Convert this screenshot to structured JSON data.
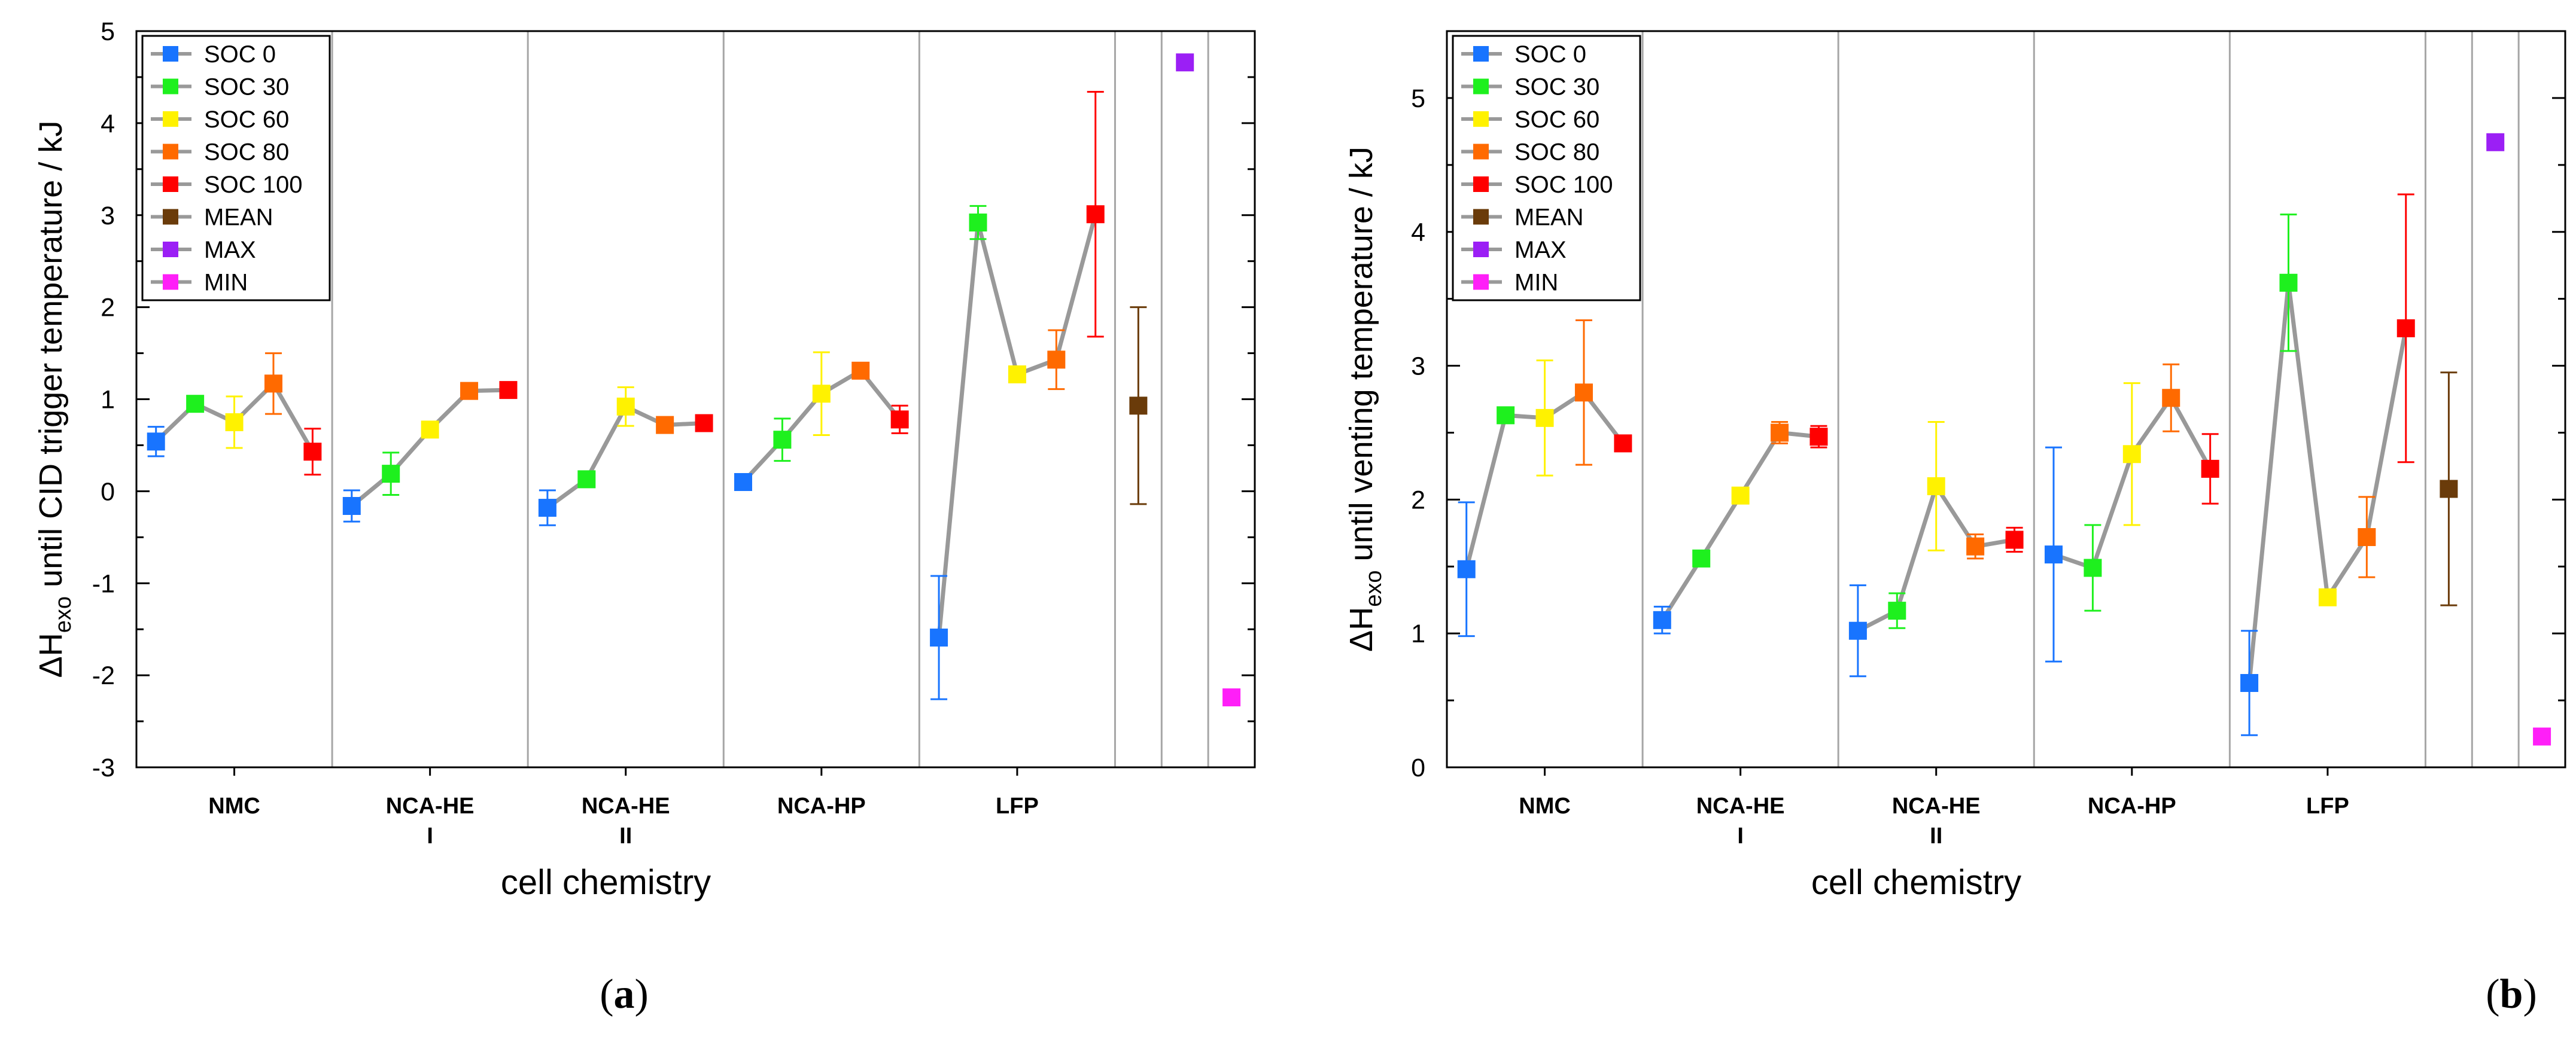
{
  "colors": {
    "soc0": "#1874FF",
    "soc30": "#1EF01E",
    "soc60": "#FFF200",
    "soc80": "#FF6A00",
    "soc100": "#FF0000",
    "mean": "#6A3B0A",
    "max": "#9B1FF5",
    "min": "#FF1FF8",
    "connector": "#999999",
    "divider": "#A6A6A6"
  },
  "chart_data": [
    {
      "type": "scatter",
      "panel_label": "(a)",
      "ylabel_parts": [
        "ΔH",
        "exo",
        " until CID trigger temperature / kJ"
      ],
      "xlabel": "cell chemistry",
      "ylim": [
        -3,
        5
      ],
      "yticks": [
        -3,
        -2,
        -1,
        0,
        1,
        2,
        3,
        4,
        5
      ],
      "ytick_labels": [
        "-3",
        "-2",
        "-1",
        "0",
        "1",
        "2",
        "3",
        "4",
        "5"
      ],
      "groups": [
        {
          "label1": "NMC",
          "label2": "",
          "points": [
            {
              "series": "SOC 0",
              "y": 0.54,
              "err": 0.16
            },
            {
              "series": "SOC 30",
              "y": 0.95,
              "err": 0.0
            },
            {
              "series": "SOC 60",
              "y": 0.75,
              "err": 0.28
            },
            {
              "series": "SOC 80",
              "y": 1.17,
              "err": 0.33
            },
            {
              "series": "SOC 100",
              "y": 0.43,
              "err": 0.25
            }
          ]
        },
        {
          "label1": "NCA-HE",
          "label2": "I",
          "points": [
            {
              "series": "SOC 0",
              "y": -0.16,
              "err": 0.17
            },
            {
              "series": "SOC 30",
              "y": 0.19,
              "err": 0.23
            },
            {
              "series": "SOC 60",
              "y": 0.67,
              "err": 0.0
            },
            {
              "series": "SOC 80",
              "y": 1.09,
              "err": 0.0
            },
            {
              "series": "SOC 100",
              "y": 1.1,
              "err": 0.0
            }
          ]
        },
        {
          "label1": "NCA-HE",
          "label2": "II",
          "points": [
            {
              "series": "SOC 0",
              "y": -0.18,
              "err": 0.19
            },
            {
              "series": "SOC 30",
              "y": 0.13,
              "err": 0.0
            },
            {
              "series": "SOC 60",
              "y": 0.92,
              "err": 0.21
            },
            {
              "series": "SOC 80",
              "y": 0.72,
              "err": 0.08
            },
            {
              "series": "SOC 100",
              "y": 0.74,
              "err": 0.0
            }
          ]
        },
        {
          "label1": "NCA-HP",
          "label2": "",
          "points": [
            {
              "series": "SOC 0",
              "y": 0.1,
              "err": 0.0
            },
            {
              "series": "SOC 30",
              "y": 0.56,
              "err": 0.23
            },
            {
              "series": "SOC 60",
              "y": 1.06,
              "err": 0.45
            },
            {
              "series": "SOC 80",
              "y": 1.31,
              "err": 0.0
            },
            {
              "series": "SOC 100",
              "y": 0.78,
              "err": 0.15
            }
          ]
        },
        {
          "label1": "LFP",
          "label2": "",
          "points": [
            {
              "series": "SOC 0",
              "y": -1.59,
              "err": 0.67
            },
            {
              "series": "SOC 30",
              "y": 2.92,
              "err": 0.18
            },
            {
              "series": "SOC 60",
              "y": 1.27,
              "err": 0.0
            },
            {
              "series": "SOC 80",
              "y": 1.43,
              "err": 0.32
            },
            {
              "series": "SOC 100",
              "y": 3.01,
              "err": 1.33
            }
          ]
        }
      ],
      "summary": [
        {
          "series": "MEAN",
          "y": 0.93,
          "err": 1.07
        },
        {
          "series": "MAX",
          "y": 4.66,
          "err": 0.0
        },
        {
          "series": "MIN",
          "y": -2.24,
          "err": 0.0
        }
      ],
      "legend": [
        "SOC 0",
        "SOC 30",
        "SOC 60",
        "SOC 80",
        "SOC 100",
        "MEAN",
        "MAX",
        "MIN"
      ],
      "legend_position": "top-left"
    },
    {
      "type": "scatter",
      "panel_label": "(b)",
      "ylabel_parts": [
        "ΔH",
        "exo",
        " until venting temperature / kJ"
      ],
      "xlabel": "cell chemistry",
      "ylim": [
        0,
        5.5
      ],
      "yticks": [
        0,
        1,
        2,
        3,
        4,
        5
      ],
      "ytick_labels": [
        "0",
        "1",
        "2",
        "3",
        "4",
        "5"
      ],
      "groups": [
        {
          "label1": "NMC",
          "label2": "",
          "points": [
            {
              "series": "SOC 0",
              "y": 1.48,
              "err": 0.5
            },
            {
              "series": "SOC 30",
              "y": 2.63,
              "err": 0.0
            },
            {
              "series": "SOC 60",
              "y": 2.61,
              "err": 0.43
            },
            {
              "series": "SOC 80",
              "y": 2.8,
              "err": 0.54
            },
            {
              "series": "SOC 100",
              "y": 2.42,
              "err": 0.0
            }
          ]
        },
        {
          "label1": "NCA-HE",
          "label2": "I",
          "points": [
            {
              "series": "SOC 0",
              "y": 1.1,
              "err": 0.1
            },
            {
              "series": "SOC 30",
              "y": 1.56,
              "err": 0.0
            },
            {
              "series": "SOC 60",
              "y": 2.03,
              "err": 0.0
            },
            {
              "series": "SOC 80",
              "y": 2.5,
              "err": 0.08
            },
            {
              "series": "SOC 100",
              "y": 2.47,
              "err": 0.08
            }
          ]
        },
        {
          "label1": "NCA-HE",
          "label2": "II",
          "points": [
            {
              "series": "SOC 0",
              "y": 1.02,
              "err": 0.34
            },
            {
              "series": "SOC 30",
              "y": 1.17,
              "err": 0.13
            },
            {
              "series": "SOC 60",
              "y": 2.1,
              "err": 0.48
            },
            {
              "series": "SOC 80",
              "y": 1.65,
              "err": 0.09
            },
            {
              "series": "SOC 100",
              "y": 1.7,
              "err": 0.09
            }
          ]
        },
        {
          "label1": "NCA-HP",
          "label2": "",
          "points": [
            {
              "series": "SOC 0",
              "y": 1.59,
              "err": 0.8
            },
            {
              "series": "SOC 30",
              "y": 1.49,
              "err": 0.32
            },
            {
              "series": "SOC 60",
              "y": 2.34,
              "err": 0.53
            },
            {
              "series": "SOC 80",
              "y": 2.76,
              "err": 0.25
            },
            {
              "series": "SOC 100",
              "y": 2.23,
              "err": 0.26
            }
          ]
        },
        {
          "label1": "LFP",
          "label2": "",
          "points": [
            {
              "series": "SOC 0",
              "y": 0.63,
              "err": 0.39
            },
            {
              "series": "SOC 30",
              "y": 3.62,
              "err": 0.51
            },
            {
              "series": "SOC 60",
              "y": 1.27,
              "err": 0.0
            },
            {
              "series": "SOC 80",
              "y": 1.72,
              "err": 0.3
            },
            {
              "series": "SOC 100",
              "y": 3.28,
              "err": 1.0
            }
          ]
        }
      ],
      "summary": [
        {
          "series": "MEAN",
          "y": 2.08,
          "err": 0.87
        },
        {
          "series": "MAX",
          "y": 4.67,
          "err": 0.0
        },
        {
          "series": "MIN",
          "y": 0.23,
          "err": 0.0
        }
      ],
      "legend": [
        "SOC 0",
        "SOC 30",
        "SOC 60",
        "SOC 80",
        "SOC 100",
        "MEAN",
        "MAX",
        "MIN"
      ],
      "legend_position": "top-left"
    }
  ]
}
